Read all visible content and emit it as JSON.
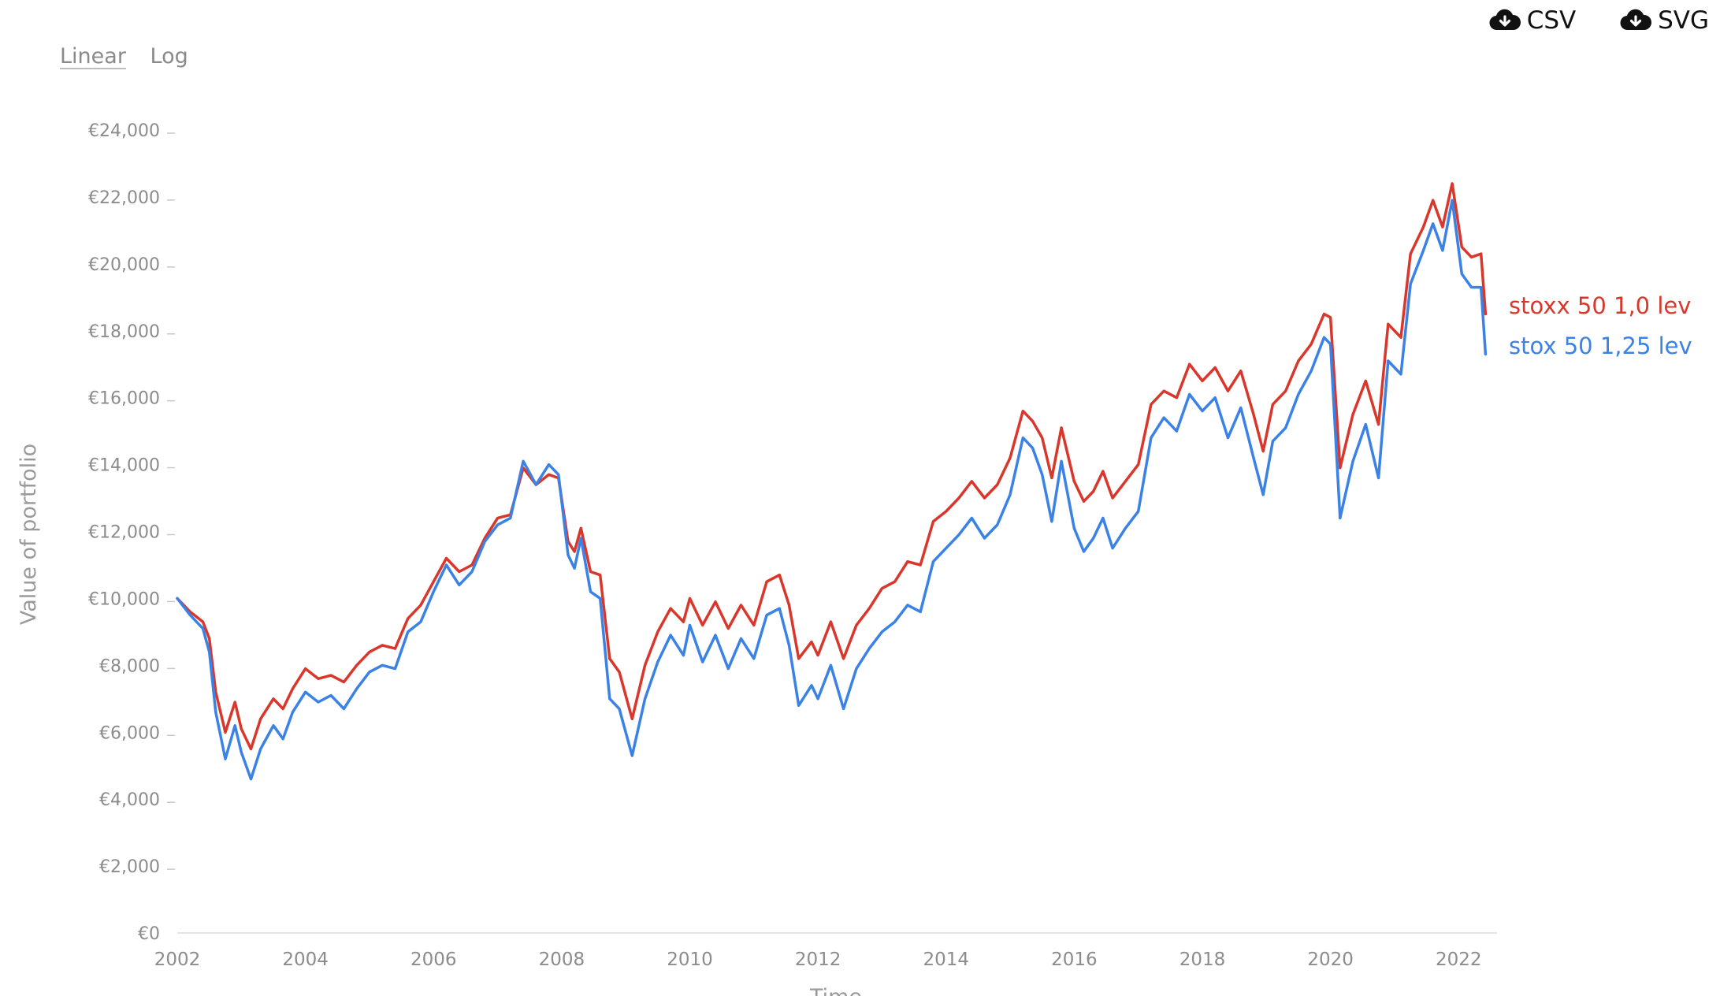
{
  "controls": {
    "scale_options": [
      "Linear",
      "Log"
    ],
    "active_scale": "Linear",
    "downloads": [
      {
        "label": "CSV",
        "icon": "cloud-download-icon"
      },
      {
        "label": "SVG",
        "icon": "cloud-download-icon"
      }
    ]
  },
  "chart_data": {
    "type": "line",
    "title": "",
    "xlabel": "Time",
    "ylabel": "Value of portfolio",
    "xlim": [
      2002.0,
      2022.6
    ],
    "ylim": [
      0,
      24000
    ],
    "x_ticks": [
      2002,
      2004,
      2006,
      2008,
      2010,
      2012,
      2014,
      2016,
      2018,
      2020,
      2022
    ],
    "y_ticks": [
      0,
      2000,
      4000,
      6000,
      8000,
      10000,
      12000,
      14000,
      16000,
      18000,
      20000,
      22000,
      24000
    ],
    "y_tick_labels": [
      "€0",
      "€2,000",
      "€4,000",
      "€6,000",
      "€8,000",
      "€10,000",
      "€12,000",
      "€14,000",
      "€16,000",
      "€18,000",
      "€20,000",
      "€22,000",
      "€24,000"
    ],
    "grid": false,
    "legend": "end-of-line labels",
    "series": [
      {
        "name": "stoxx 50 1,0 lev",
        "color": "#d9372b",
        "points": [
          [
            2002.0,
            10000
          ],
          [
            2002.2,
            9600
          ],
          [
            2002.4,
            9300
          ],
          [
            2002.5,
            8800
          ],
          [
            2002.6,
            7200
          ],
          [
            2002.75,
            6000
          ],
          [
            2002.9,
            6900
          ],
          [
            2003.0,
            6100
          ],
          [
            2003.15,
            5500
          ],
          [
            2003.3,
            6400
          ],
          [
            2003.5,
            7000
          ],
          [
            2003.65,
            6700
          ],
          [
            2003.8,
            7300
          ],
          [
            2004.0,
            7900
          ],
          [
            2004.2,
            7600
          ],
          [
            2004.4,
            7700
          ],
          [
            2004.6,
            7500
          ],
          [
            2004.8,
            8000
          ],
          [
            2005.0,
            8400
          ],
          [
            2005.2,
            8600
          ],
          [
            2005.4,
            8500
          ],
          [
            2005.6,
            9400
          ],
          [
            2005.8,
            9800
          ],
          [
            2006.0,
            10500
          ],
          [
            2006.2,
            11200
          ],
          [
            2006.4,
            10800
          ],
          [
            2006.6,
            11000
          ],
          [
            2006.8,
            11800
          ],
          [
            2007.0,
            12400
          ],
          [
            2007.2,
            12500
          ],
          [
            2007.4,
            13900
          ],
          [
            2007.6,
            13400
          ],
          [
            2007.8,
            13700
          ],
          [
            2007.95,
            13600
          ],
          [
            2008.1,
            11700
          ],
          [
            2008.2,
            11400
          ],
          [
            2008.3,
            12100
          ],
          [
            2008.45,
            10800
          ],
          [
            2008.6,
            10700
          ],
          [
            2008.75,
            8200
          ],
          [
            2008.9,
            7800
          ],
          [
            2009.1,
            6400
          ],
          [
            2009.3,
            8000
          ],
          [
            2009.5,
            9000
          ],
          [
            2009.7,
            9700
          ],
          [
            2009.9,
            9300
          ],
          [
            2010.0,
            10000
          ],
          [
            2010.2,
            9200
          ],
          [
            2010.4,
            9900
          ],
          [
            2010.6,
            9100
          ],
          [
            2010.8,
            9800
          ],
          [
            2011.0,
            9200
          ],
          [
            2011.2,
            10500
          ],
          [
            2011.4,
            10700
          ],
          [
            2011.55,
            9800
          ],
          [
            2011.7,
            8200
          ],
          [
            2011.9,
            8700
          ],
          [
            2012.0,
            8300
          ],
          [
            2012.2,
            9300
          ],
          [
            2012.4,
            8200
          ],
          [
            2012.6,
            9200
          ],
          [
            2012.8,
            9700
          ],
          [
            2013.0,
            10300
          ],
          [
            2013.2,
            10500
          ],
          [
            2013.4,
            11100
          ],
          [
            2013.6,
            11000
          ],
          [
            2013.8,
            12300
          ],
          [
            2014.0,
            12600
          ],
          [
            2014.2,
            13000
          ],
          [
            2014.4,
            13500
          ],
          [
            2014.6,
            13000
          ],
          [
            2014.8,
            13400
          ],
          [
            2015.0,
            14200
          ],
          [
            2015.2,
            15600
          ],
          [
            2015.35,
            15300
          ],
          [
            2015.5,
            14800
          ],
          [
            2015.65,
            13600
          ],
          [
            2015.8,
            15100
          ],
          [
            2016.0,
            13500
          ],
          [
            2016.15,
            12900
          ],
          [
            2016.3,
            13200
          ],
          [
            2016.45,
            13800
          ],
          [
            2016.6,
            13000
          ],
          [
            2016.8,
            13500
          ],
          [
            2017.0,
            14000
          ],
          [
            2017.2,
            15800
          ],
          [
            2017.4,
            16200
          ],
          [
            2017.6,
            16000
          ],
          [
            2017.8,
            17000
          ],
          [
            2018.0,
            16500
          ],
          [
            2018.2,
            16900
          ],
          [
            2018.4,
            16200
          ],
          [
            2018.6,
            16800
          ],
          [
            2018.8,
            15500
          ],
          [
            2018.95,
            14400
          ],
          [
            2019.1,
            15800
          ],
          [
            2019.3,
            16200
          ],
          [
            2019.5,
            17100
          ],
          [
            2019.7,
            17600
          ],
          [
            2019.9,
            18500
          ],
          [
            2020.0,
            18400
          ],
          [
            2020.15,
            13900
          ],
          [
            2020.35,
            15500
          ],
          [
            2020.55,
            16500
          ],
          [
            2020.75,
            15200
          ],
          [
            2020.9,
            18200
          ],
          [
            2021.1,
            17800
          ],
          [
            2021.25,
            20300
          ],
          [
            2021.45,
            21100
          ],
          [
            2021.6,
            21900
          ],
          [
            2021.75,
            21100
          ],
          [
            2021.9,
            22400
          ],
          [
            2022.05,
            20500
          ],
          [
            2022.2,
            20200
          ],
          [
            2022.35,
            20300
          ],
          [
            2022.42,
            18500
          ]
        ]
      },
      {
        "name": "stox 50 1,25 lev",
        "color": "#3b82e6",
        "points": [
          [
            2002.0,
            10000
          ],
          [
            2002.2,
            9500
          ],
          [
            2002.4,
            9100
          ],
          [
            2002.5,
            8400
          ],
          [
            2002.6,
            6600
          ],
          [
            2002.75,
            5200
          ],
          [
            2002.9,
            6200
          ],
          [
            2003.0,
            5400
          ],
          [
            2003.15,
            4600
          ],
          [
            2003.3,
            5500
          ],
          [
            2003.5,
            6200
          ],
          [
            2003.65,
            5800
          ],
          [
            2003.8,
            6600
          ],
          [
            2004.0,
            7200
          ],
          [
            2004.2,
            6900
          ],
          [
            2004.4,
            7100
          ],
          [
            2004.6,
            6700
          ],
          [
            2004.8,
            7300
          ],
          [
            2005.0,
            7800
          ],
          [
            2005.2,
            8000
          ],
          [
            2005.4,
            7900
          ],
          [
            2005.6,
            9000
          ],
          [
            2005.8,
            9300
          ],
          [
            2006.0,
            10200
          ],
          [
            2006.2,
            11000
          ],
          [
            2006.4,
            10400
          ],
          [
            2006.6,
            10800
          ],
          [
            2006.8,
            11700
          ],
          [
            2007.0,
            12200
          ],
          [
            2007.2,
            12400
          ],
          [
            2007.4,
            14100
          ],
          [
            2007.6,
            13400
          ],
          [
            2007.8,
            14000
          ],
          [
            2007.95,
            13700
          ],
          [
            2008.1,
            11300
          ],
          [
            2008.2,
            10900
          ],
          [
            2008.3,
            11800
          ],
          [
            2008.45,
            10200
          ],
          [
            2008.6,
            10000
          ],
          [
            2008.75,
            7000
          ],
          [
            2008.9,
            6700
          ],
          [
            2009.1,
            5300
          ],
          [
            2009.3,
            7000
          ],
          [
            2009.5,
            8100
          ],
          [
            2009.7,
            8900
          ],
          [
            2009.9,
            8300
          ],
          [
            2010.0,
            9200
          ],
          [
            2010.2,
            8100
          ],
          [
            2010.4,
            8900
          ],
          [
            2010.6,
            7900
          ],
          [
            2010.8,
            8800
          ],
          [
            2011.0,
            8200
          ],
          [
            2011.2,
            9500
          ],
          [
            2011.4,
            9700
          ],
          [
            2011.55,
            8600
          ],
          [
            2011.7,
            6800
          ],
          [
            2011.9,
            7400
          ],
          [
            2012.0,
            7000
          ],
          [
            2012.2,
            8000
          ],
          [
            2012.4,
            6700
          ],
          [
            2012.6,
            7900
          ],
          [
            2012.8,
            8500
          ],
          [
            2013.0,
            9000
          ],
          [
            2013.2,
            9300
          ],
          [
            2013.4,
            9800
          ],
          [
            2013.6,
            9600
          ],
          [
            2013.8,
            11100
          ],
          [
            2014.0,
            11500
          ],
          [
            2014.2,
            11900
          ],
          [
            2014.4,
            12400
          ],
          [
            2014.6,
            11800
          ],
          [
            2014.8,
            12200
          ],
          [
            2015.0,
            13100
          ],
          [
            2015.2,
            14800
          ],
          [
            2015.35,
            14500
          ],
          [
            2015.5,
            13700
          ],
          [
            2015.65,
            12300
          ],
          [
            2015.8,
            14100
          ],
          [
            2016.0,
            12100
          ],
          [
            2016.15,
            11400
          ],
          [
            2016.3,
            11800
          ],
          [
            2016.45,
            12400
          ],
          [
            2016.6,
            11500
          ],
          [
            2016.8,
            12100
          ],
          [
            2017.0,
            12600
          ],
          [
            2017.2,
            14800
          ],
          [
            2017.4,
            15400
          ],
          [
            2017.6,
            15000
          ],
          [
            2017.8,
            16100
          ],
          [
            2018.0,
            15600
          ],
          [
            2018.2,
            16000
          ],
          [
            2018.4,
            14800
          ],
          [
            2018.6,
            15700
          ],
          [
            2018.8,
            14200
          ],
          [
            2018.95,
            13100
          ],
          [
            2019.1,
            14700
          ],
          [
            2019.3,
            15100
          ],
          [
            2019.5,
            16100
          ],
          [
            2019.7,
            16800
          ],
          [
            2019.9,
            17800
          ],
          [
            2020.0,
            17600
          ],
          [
            2020.15,
            12400
          ],
          [
            2020.35,
            14100
          ],
          [
            2020.55,
            15200
          ],
          [
            2020.75,
            13600
          ],
          [
            2020.9,
            17100
          ],
          [
            2021.1,
            16700
          ],
          [
            2021.25,
            19400
          ],
          [
            2021.45,
            20400
          ],
          [
            2021.6,
            21200
          ],
          [
            2021.75,
            20400
          ],
          [
            2021.9,
            21900
          ],
          [
            2022.05,
            19700
          ],
          [
            2022.2,
            19300
          ],
          [
            2022.35,
            19300
          ],
          [
            2022.42,
            17300
          ]
        ]
      }
    ]
  }
}
